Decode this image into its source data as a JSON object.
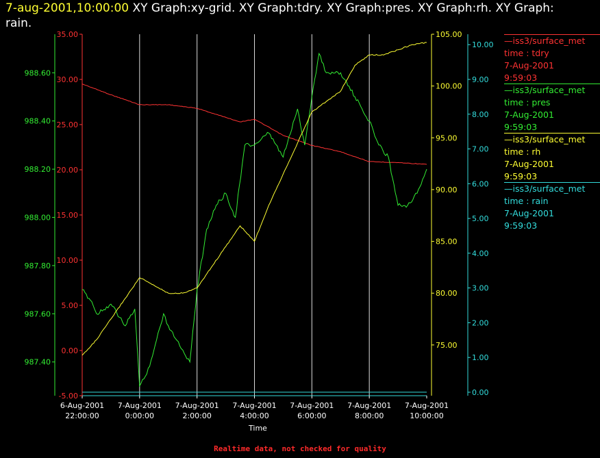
{
  "header": {
    "timestamp": "7-aug-2001,10:00:00",
    "line1_rest": " XY Graph:xy-grid.  XY Graph:tdry.  XY Graph:pres.  XY Graph:rh.  XY Graph:",
    "line2": "rain."
  },
  "footer": "Realtime data, not checked for quality",
  "colors": {
    "tdry": "#ff3333",
    "pres": "#33ee33",
    "rh": "#ffff33",
    "rain": "#33dddd",
    "grid": "#dddddd"
  },
  "legend": [
    {
      "series": "tdry",
      "line1": "—iss3/surface_met",
      "line2": "time : tdry",
      "line3": "7-Aug-2001",
      "line4": "9:59:03"
    },
    {
      "series": "pres",
      "line1": "—iss3/surface_met",
      "line2": "time : pres",
      "line3": "7-Aug-2001",
      "line4": "9:59:03"
    },
    {
      "series": "rh",
      "line1": "—iss3/surface_met",
      "line2": "time : rh",
      "line3": "7-Aug-2001",
      "line4": "9:59:03"
    },
    {
      "series": "rain",
      "line1": "—iss3/surface_met",
      "line2": "time : rain",
      "line3": "7-Aug-2001",
      "line4": "9:59:03"
    }
  ],
  "chart_data": {
    "type": "line",
    "xlabel": "Time",
    "x_ticks": [
      {
        "date": "6-Aug-2001",
        "time": "22:00:00"
      },
      {
        "date": "7-Aug-2001",
        "time": "0:00:00"
      },
      {
        "date": "7-Aug-2001",
        "time": "2:00:00"
      },
      {
        "date": "7-Aug-2001",
        "time": "4:00:00"
      },
      {
        "date": "7-Aug-2001",
        "time": "6:00:00"
      },
      {
        "date": "7-Aug-2001",
        "time": "8:00:00"
      },
      {
        "date": "7-Aug-2001",
        "time": "10:00:00"
      }
    ],
    "xlim": [
      "2001-08-06 22:00",
      "2001-08-07 10:00"
    ],
    "grid": "vertical",
    "axes": {
      "tdry": {
        "ylim": [
          -5,
          35
        ],
        "ticks": [
          "-5.00",
          "0.00",
          "5.00",
          "10.00",
          "15.00",
          "20.00",
          "25.00",
          "30.00",
          "35.00"
        ]
      },
      "pres": {
        "ylim": [
          987.26,
          988.76
        ],
        "ticks": [
          "987.40",
          "987.60",
          "987.80",
          "988.00",
          "988.20",
          "988.40",
          "988.60"
        ]
      },
      "rh": {
        "ylim": [
          70.1,
          105.0
        ],
        "ticks": [
          "75.00",
          "80.00",
          "85.00",
          "90.00",
          "95.00",
          "100.00",
          "105.00"
        ]
      },
      "rain": {
        "ylim": [
          -0.1,
          10.3
        ],
        "ticks": [
          "0.00",
          "1.00",
          "2.00",
          "3.00",
          "4.00",
          "5.00",
          "6.00",
          "7.00",
          "8.00",
          "9.00",
          "10.00"
        ]
      }
    },
    "series": [
      {
        "name": "tdry",
        "x": [
          "2001-08-06 22:00",
          "2001-08-06 23:00",
          "2001-08-07 00:00",
          "2001-08-07 01:00",
          "2001-08-07 02:00",
          "2001-08-07 03:00",
          "2001-08-07 03:30",
          "2001-08-07 04:00",
          "2001-08-07 05:00",
          "2001-08-07 06:00",
          "2001-08-07 07:00",
          "2001-08-07 08:00",
          "2001-08-07 09:00",
          "2001-08-07 10:00"
        ],
        "values": [
          29.5,
          28.3,
          27.2,
          27.2,
          26.8,
          25.8,
          25.3,
          25.6,
          23.8,
          22.7,
          22.0,
          20.9,
          20.8,
          20.6
        ]
      },
      {
        "name": "pres",
        "x": [
          "2001-08-06 22:00",
          "2001-08-06 22:20",
          "2001-08-06 22:30",
          "2001-08-06 23:00",
          "2001-08-06 23:30",
          "2001-08-06 23:50",
          "2001-08-07 00:00",
          "2001-08-07 00:15",
          "2001-08-07 00:30",
          "2001-08-07 00:50",
          "2001-08-07 01:00",
          "2001-08-07 01:30",
          "2001-08-07 01:45",
          "2001-08-07 02:00",
          "2001-08-07 02:20",
          "2001-08-07 02:40",
          "2001-08-07 03:00",
          "2001-08-07 03:20",
          "2001-08-07 03:40",
          "2001-08-07 04:00",
          "2001-08-07 04:30",
          "2001-08-07 05:00",
          "2001-08-07 05:30",
          "2001-08-07 05:45",
          "2001-08-07 06:00",
          "2001-08-07 06:15",
          "2001-08-07 06:30",
          "2001-08-07 07:00",
          "2001-08-07 07:30",
          "2001-08-07 08:00",
          "2001-08-07 08:20",
          "2001-08-07 08:40",
          "2001-08-07 09:00",
          "2001-08-07 09:20",
          "2001-08-07 09:40",
          "2001-08-07 10:00"
        ],
        "values": [
          987.7,
          987.65,
          987.6,
          987.64,
          987.55,
          987.62,
          987.3,
          987.35,
          987.45,
          987.6,
          987.55,
          987.45,
          987.4,
          987.7,
          987.95,
          988.05,
          988.1,
          988.0,
          988.3,
          988.3,
          988.35,
          988.25,
          988.45,
          988.3,
          988.5,
          988.68,
          988.6,
          988.6,
          988.5,
          988.4,
          988.3,
          988.25,
          988.05,
          988.05,
          988.1,
          988.2
        ]
      },
      {
        "name": "rh",
        "x": [
          "2001-08-06 22:00",
          "2001-08-06 22:30",
          "2001-08-06 23:00",
          "2001-08-06 23:30",
          "2001-08-07 00:00",
          "2001-08-07 00:40",
          "2001-08-07 01:00",
          "2001-08-07 01:30",
          "2001-08-07 02:00",
          "2001-08-07 02:30",
          "2001-08-07 03:00",
          "2001-08-07 03:30",
          "2001-08-07 04:00",
          "2001-08-07 04:30",
          "2001-08-07 05:00",
          "2001-08-07 05:30",
          "2001-08-07 06:00",
          "2001-08-07 06:30",
          "2001-08-07 07:00",
          "2001-08-07 07:30",
          "2001-08-07 08:00",
          "2001-08-07 08:30",
          "2001-08-07 09:00",
          "2001-08-07 09:30",
          "2001-08-07 10:00"
        ],
        "values": [
          74.0,
          75.5,
          77.5,
          79.5,
          81.5,
          80.5,
          80.0,
          80.0,
          80.5,
          82.5,
          84.5,
          86.5,
          85.0,
          88.5,
          91.5,
          94.5,
          97.5,
          98.5,
          99.5,
          102.0,
          103.0,
          103.0,
          103.5,
          104.0,
          104.2
        ]
      },
      {
        "name": "rain",
        "x": [
          "2001-08-06 22:00",
          "2001-08-07 10:00"
        ],
        "values": [
          0.0,
          0.0
        ]
      }
    ]
  }
}
